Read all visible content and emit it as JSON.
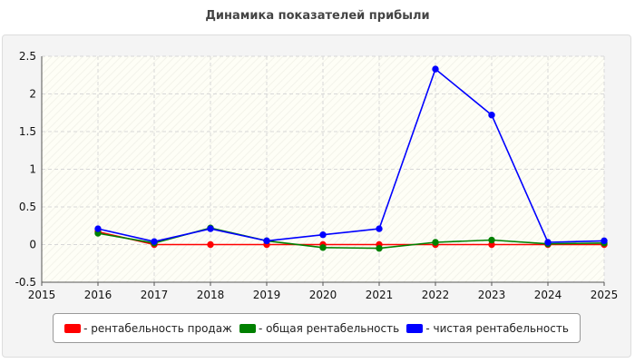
{
  "title": "Динамика показателей прибыли",
  "chart_data": {
    "type": "line",
    "title": "Динамика показателей прибыли",
    "x": [
      2016,
      2017,
      2018,
      2019,
      2020,
      2021,
      2022,
      2023,
      2024,
      2025
    ],
    "x_ticks": [
      "2015",
      "2016",
      "2017",
      "2018",
      "2019",
      "2020",
      "2021",
      "2022",
      "2023",
      "2024",
      "2025"
    ],
    "y_ticks": [
      "2.5",
      "2",
      "1.5",
      "1",
      "0.5",
      "0",
      "-0.5"
    ],
    "xlim": [
      2015,
      2025
    ],
    "ylim": [
      -0.5,
      2.5
    ],
    "grid": true,
    "legend_position": "bottom",
    "series": [
      {
        "name": "- рентабельность продаж",
        "color": "#ff0000",
        "values": [
          0.17,
          0.0,
          0.0,
          0.0,
          0.0,
          0.0,
          0.0,
          0.0,
          0.0,
          0.0
        ]
      },
      {
        "name": "- общая рентабельность",
        "color": "#008000",
        "values": [
          0.15,
          0.02,
          0.22,
          0.05,
          -0.04,
          -0.05,
          0.03,
          0.06,
          0.01,
          0.02
        ]
      },
      {
        "name": "- чистая рентабельность",
        "color": "#0000ff",
        "values": [
          0.21,
          0.04,
          0.21,
          0.05,
          0.13,
          0.21,
          2.33,
          1.72,
          0.03,
          0.05
        ]
      }
    ]
  }
}
